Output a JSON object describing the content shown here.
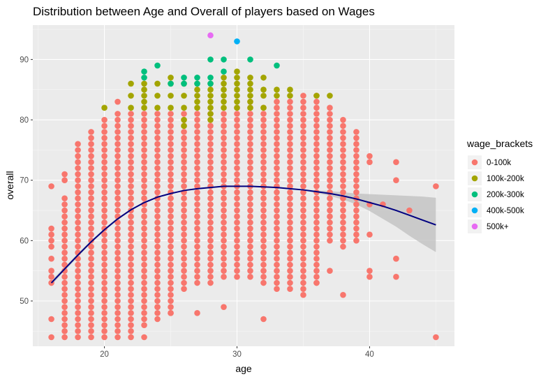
{
  "chart_data": {
    "type": "scatter",
    "title": "Distribution between Age and Overall of players based  on Wages",
    "xlabel": "age",
    "ylabel": "overall",
    "xlim": [
      14.6,
      46.4
    ],
    "ylim": [
      42.5,
      95.7
    ],
    "xticks": [
      20,
      30,
      40
    ],
    "yticks": [
      50,
      60,
      70,
      80,
      90
    ],
    "grid": true,
    "legend": {
      "title": "wage_brackets",
      "position": "right",
      "entries": [
        "0-100k",
        "100k-200k",
        "200k-300k",
        "400k-500k",
        "500k+"
      ]
    },
    "colors": {
      "0-100k": "#F8766D",
      "100k-200k": "#A3A500",
      "200k-300k": "#00BF7D",
      "400k-500k": "#00B0F6",
      "500k+": "#E76BF3",
      "smooth": "#000080",
      "ribbon": "#bfbfbf",
      "panel": "#ebebeb"
    },
    "low_range": [
      [
        16,
        44,
        69
      ],
      [
        17,
        44,
        71
      ],
      [
        18,
        44,
        76
      ],
      [
        19,
        44,
        78
      ],
      [
        20,
        44,
        80
      ],
      [
        21,
        44,
        83
      ],
      [
        22,
        45,
        81
      ],
      [
        23,
        46,
        81
      ],
      [
        24,
        47,
        81
      ],
      [
        25,
        48,
        81
      ],
      [
        26,
        52,
        81
      ],
      [
        27,
        53,
        81
      ],
      [
        28,
        53,
        81
      ],
      [
        29,
        54,
        81
      ],
      [
        30,
        54,
        82
      ],
      [
        31,
        54,
        83
      ],
      [
        32,
        53,
        82
      ],
      [
        33,
        52,
        83
      ],
      [
        34,
        52,
        83
      ],
      [
        35,
        51,
        84
      ],
      [
        36,
        53,
        84
      ],
      [
        37,
        55,
        82
      ],
      [
        38,
        51,
        80
      ],
      [
        39,
        60,
        78
      ],
      [
        40,
        61,
        74
      ],
      [
        42,
        54,
        73
      ],
      [
        45,
        44,
        69
      ]
    ],
    "low_gaps": [
      [
        16,
        [
          45,
          46,
          48,
          49,
          50,
          51,
          52,
          56,
          58,
          63,
          64,
          65,
          66,
          67,
          68
        ]
      ],
      [
        17,
        [
          68,
          69
        ]
      ],
      [
        21,
        [
          82
        ]
      ],
      [
        32,
        [
          48,
          49,
          50,
          51,
          52
        ]
      ],
      [
        37,
        [
          56,
          57,
          58,
          59
        ]
      ],
      [
        38,
        [
          52,
          53,
          54,
          55,
          56,
          57,
          58
        ]
      ],
      [
        40,
        [
          55,
          56,
          57,
          58,
          59,
          60,
          62,
          63,
          64,
          65,
          67,
          68,
          69,
          70,
          71,
          72
        ]
      ],
      [
        42,
        [
          55,
          56,
          58,
          59,
          60,
          61,
          62,
          63,
          64,
          65,
          66,
          67,
          68,
          69,
          71,
          72
        ]
      ],
      [
        45,
        [
          45,
          46,
          47,
          48,
          49,
          50,
          51,
          52,
          53,
          54,
          55,
          56,
          57,
          58,
          59,
          60,
          61,
          62,
          63,
          64,
          65,
          66,
          67,
          68
        ]
      ]
    ],
    "low_extra": [
      [
        22,
        44
      ],
      [
        23,
        44
      ],
      [
        24,
        49
      ],
      [
        25,
        48
      ],
      [
        27,
        48
      ],
      [
        29,
        49
      ],
      [
        32,
        47
      ],
      [
        41,
        66
      ],
      [
        43,
        65
      ],
      [
        40,
        55
      ],
      [
        40,
        54
      ],
      [
        42,
        57
      ],
      [
        36,
        53
      ]
    ],
    "points_100k_200k": [
      [
        20,
        82
      ],
      [
        22,
        82
      ],
      [
        22,
        84
      ],
      [
        22,
        86
      ],
      [
        23,
        82
      ],
      [
        23,
        83
      ],
      [
        23,
        84
      ],
      [
        23,
        85
      ],
      [
        23,
        86
      ],
      [
        24,
        82
      ],
      [
        24,
        84
      ],
      [
        24,
        86
      ],
      [
        25,
        82
      ],
      [
        25,
        84
      ],
      [
        25,
        86
      ],
      [
        25,
        87
      ],
      [
        26,
        79
      ],
      [
        26,
        80
      ],
      [
        26,
        82
      ],
      [
        26,
        84
      ],
      [
        26,
        86
      ],
      [
        27,
        82
      ],
      [
        27,
        83
      ],
      [
        27,
        84
      ],
      [
        27,
        85
      ],
      [
        27,
        86
      ],
      [
        28,
        80
      ],
      [
        28,
        81
      ],
      [
        28,
        82
      ],
      [
        28,
        83
      ],
      [
        28,
        84
      ],
      [
        28,
        85
      ],
      [
        28,
        86
      ],
      [
        29,
        82
      ],
      [
        29,
        83
      ],
      [
        29,
        84
      ],
      [
        29,
        85
      ],
      [
        29,
        86
      ],
      [
        29,
        87
      ],
      [
        30,
        82
      ],
      [
        30,
        83
      ],
      [
        30,
        84
      ],
      [
        30,
        85
      ],
      [
        30,
        86
      ],
      [
        30,
        87
      ],
      [
        30,
        88
      ],
      [
        31,
        82
      ],
      [
        31,
        83
      ],
      [
        31,
        84
      ],
      [
        31,
        85
      ],
      [
        31,
        86
      ],
      [
        31,
        87
      ],
      [
        32,
        82
      ],
      [
        32,
        84
      ],
      [
        32,
        85
      ],
      [
        32,
        87
      ],
      [
        33,
        84
      ],
      [
        33,
        85
      ],
      [
        34,
        84
      ],
      [
        34,
        85
      ],
      [
        36,
        84
      ],
      [
        37,
        84
      ]
    ],
    "points_200k_300k": [
      [
        23,
        87
      ],
      [
        23,
        88
      ],
      [
        24,
        89
      ],
      [
        25,
        86
      ],
      [
        26,
        86
      ],
      [
        26,
        87
      ],
      [
        27,
        86
      ],
      [
        27,
        87
      ],
      [
        28,
        86
      ],
      [
        28,
        87
      ],
      [
        28,
        90
      ],
      [
        29,
        88
      ],
      [
        29,
        90
      ],
      [
        31,
        90
      ],
      [
        33,
        89
      ]
    ],
    "points_400k_500k": [
      [
        30,
        93
      ]
    ],
    "points_500k_plus": [
      [
        28,
        94
      ]
    ],
    "smooth": {
      "x": [
        16,
        17,
        18,
        19,
        20,
        21,
        22,
        23,
        24,
        25,
        26,
        27,
        28,
        29,
        30,
        31,
        32,
        33,
        34,
        35,
        36,
        37,
        38,
        39,
        40,
        41,
        42,
        43,
        44,
        45
      ],
      "y": [
        53,
        55.3,
        57.6,
        59.8,
        61.8,
        63.6,
        65.1,
        66.3,
        67.2,
        67.8,
        68.3,
        68.6,
        68.8,
        69,
        69,
        69,
        68.9,
        68.8,
        68.6,
        68.4,
        68.1,
        67.8,
        67.4,
        66.9,
        66.3,
        65.7,
        65,
        64.2,
        63.4,
        62.6
      ],
      "band_low": [
        52.6,
        55,
        57.3,
        59.6,
        61.6,
        63.4,
        65,
        66.2,
        67.1,
        67.7,
        68.2,
        68.5,
        68.7,
        68.9,
        68.9,
        68.9,
        68.8,
        68.7,
        68.5,
        68.3,
        67.9,
        67.4,
        66.8,
        66,
        64.9,
        63.6,
        62.3,
        60.8,
        59.4,
        58.1
      ],
      "band_high": [
        53.4,
        55.6,
        57.9,
        60,
        62,
        63.8,
        65.2,
        66.4,
        67.3,
        67.9,
        68.4,
        68.7,
        68.9,
        69.1,
        69.1,
        69.1,
        69,
        68.9,
        68.7,
        68.5,
        68.3,
        68.2,
        68,
        67.8,
        67.7,
        67.6,
        67.5,
        67.4,
        67.3,
        67.1
      ]
    }
  }
}
